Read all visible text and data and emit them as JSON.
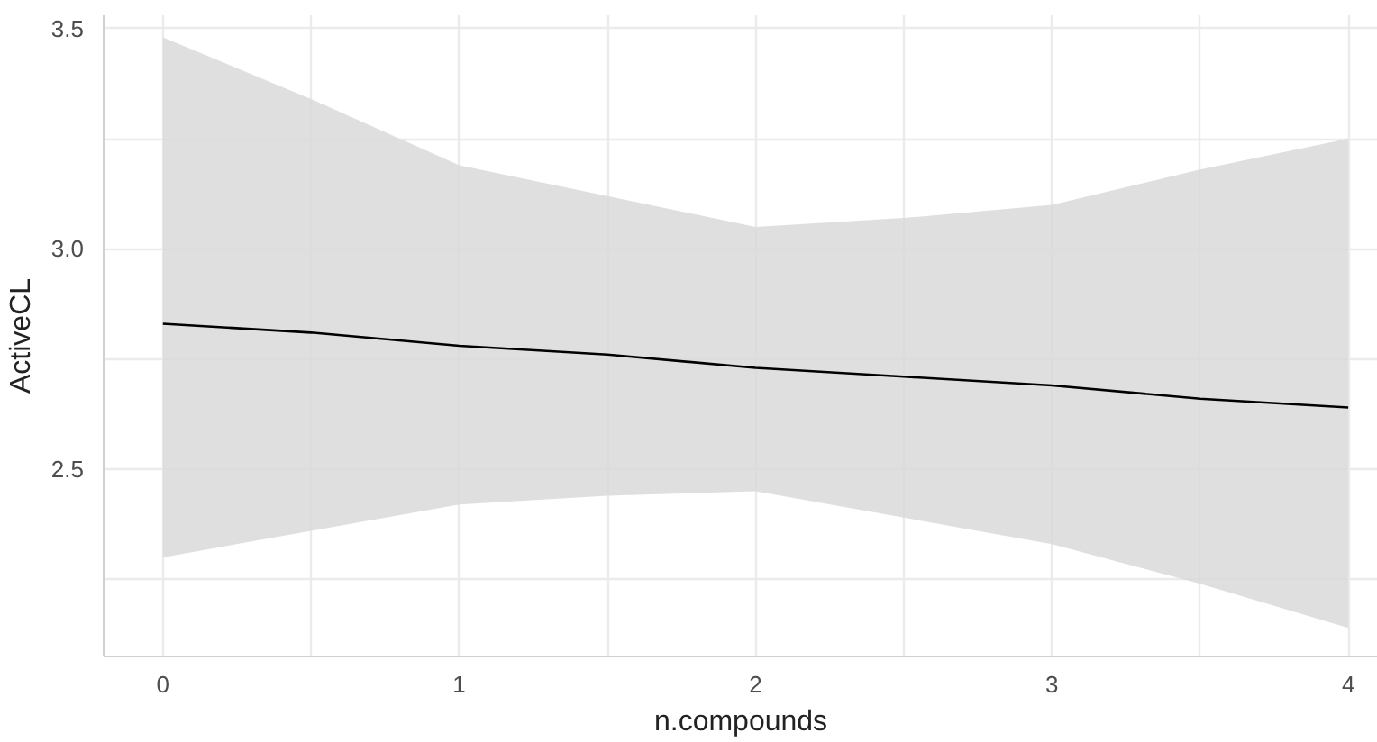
{
  "chart_data": {
    "type": "line",
    "xlabel": "n.compounds",
    "ylabel": "ActiveCL",
    "x": [
      0,
      0.5,
      1,
      1.5,
      2,
      2.5,
      3,
      3.5,
      4
    ],
    "series": [
      {
        "color": "#000000",
        "values": [
          2.83,
          2.81,
          2.78,
          2.76,
          2.73,
          2.71,
          2.69,
          2.66,
          2.64
        ],
        "lower": [
          2.3,
          2.36,
          2.42,
          2.44,
          2.45,
          2.39,
          2.33,
          2.24,
          2.14
        ],
        "upper": [
          3.48,
          3.34,
          3.19,
          3.12,
          3.05,
          3.07,
          3.1,
          3.18,
          3.25
        ]
      }
    ],
    "xlim": [
      -0.2,
      4.1
    ],
    "ylim": [
      2.075,
      3.53
    ],
    "xticks": [
      0,
      {
        "value": 0.5,
        "label": null
      },
      1,
      {
        "value": 1.5,
        "label": null
      },
      2,
      {
        "value": 2.5,
        "label": null
      },
      3,
      {
        "value": 3.5,
        "label": null
      },
      4
    ],
    "yticks": [
      {
        "value": 2.25,
        "label": null
      },
      2.5,
      {
        "value": 2.75,
        "label": null
      },
      {
        "value": 3,
        "label": "3.0"
      },
      {
        "value": 3.25,
        "label": null
      },
      3.5
    ],
    "grid": true,
    "marker": "none",
    "line_style": "solid"
  }
}
